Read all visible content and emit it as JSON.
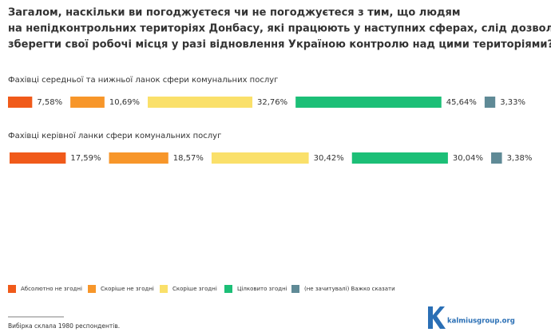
{
  "chart_data": {
    "type": "bar",
    "title": [
      "Загалом, наскільки ви погоджуєтеся чи не погоджуєтеся з тим, що людям",
      "на непідконтрольних територіях Донбасу, які працюють у наступних сферах, слід дозволити",
      "зберегти свої робочі місця у разі відновлення Україною контролю над цими територіями?"
    ],
    "categories": [
      "Фахівці середньої та нижньої ланок сфери комунальних послуг",
      "Фахівці керівної ланки сфери комунальних послуг"
    ],
    "series": [
      {
        "name": "Абсолютно не згодні",
        "color": "#f05a1a",
        "values": [
          7.58,
          17.59
        ],
        "value_labels": [
          "7,58%",
          "17,59%"
        ]
      },
      {
        "name": "Скоріше не згодні",
        "color": "#f7962a",
        "values": [
          10.69,
          18.57
        ],
        "value_labels": [
          "10,69%",
          "18,57%"
        ]
      },
      {
        "name": "Скоріше згодні",
        "color": "#fae06a",
        "values": [
          32.76,
          30.42
        ],
        "value_labels": [
          "32,76%",
          "30,42%"
        ]
      },
      {
        "name": "Цілковито згодні",
        "color": "#1cbf77",
        "values": [
          45.64,
          30.04
        ],
        "value_labels": [
          "45,64%",
          "30,04%"
        ]
      },
      {
        "name": "(не зачитувалі) Важко сказати",
        "color": "#5f8a96",
        "values": [
          3.33,
          3.38
        ],
        "value_labels": [
          "3,33%",
          "3,38%"
        ]
      }
    ],
    "note": "Вибірка склала 1980 респондентів.",
    "source": "kalmiusgroup.org"
  }
}
